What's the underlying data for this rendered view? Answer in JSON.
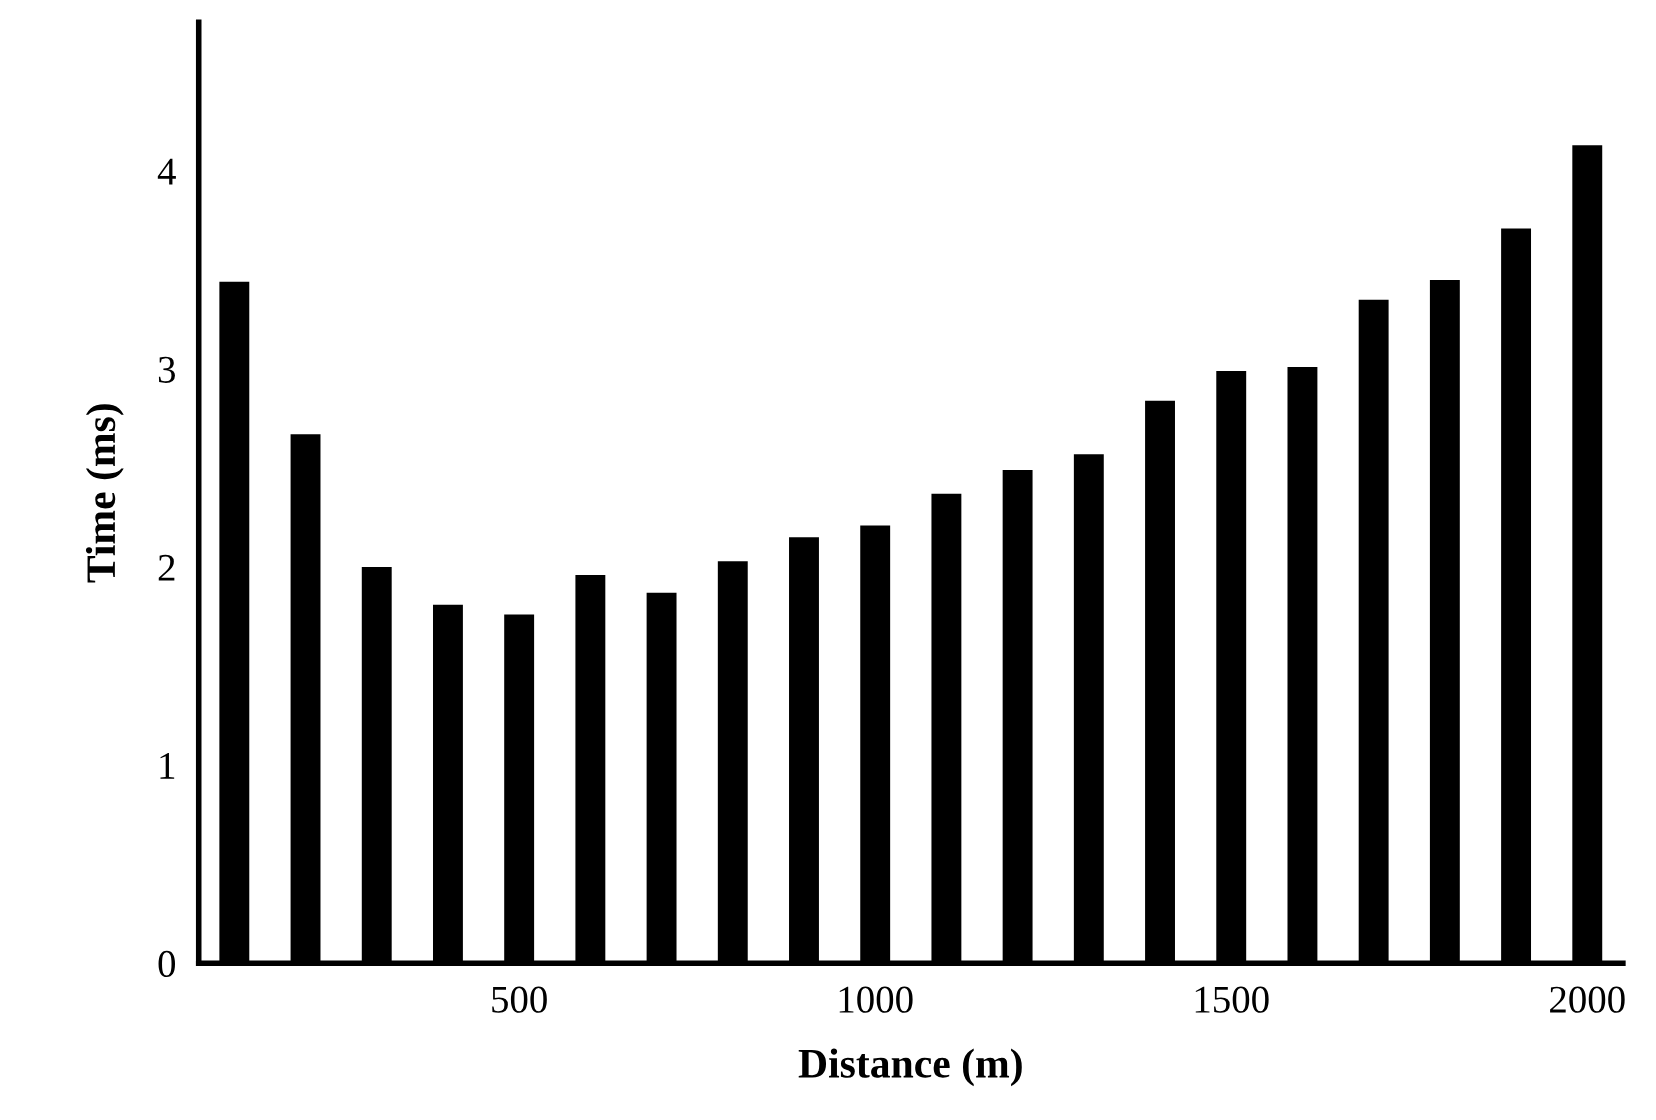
{
  "chart_data": {
    "type": "bar",
    "xlabel": "Distance (m)",
    "ylabel": "Time (ms)",
    "categories": [
      null,
      null,
      null,
      null,
      "500",
      null,
      null,
      null,
      null,
      "1000",
      null,
      null,
      null,
      null,
      "1500",
      null,
      null,
      null,
      null,
      "2000"
    ],
    "values": [
      3.44,
      2.67,
      2.0,
      1.81,
      1.76,
      1.96,
      1.87,
      2.03,
      2.15,
      2.21,
      2.37,
      2.49,
      2.57,
      2.84,
      2.99,
      3.01,
      3.35,
      3.45,
      3.71,
      4.13
    ],
    "color": "#000000",
    "ylim": [
      0,
      4.75
    ],
    "yticks": [
      0,
      1,
      2,
      3,
      4
    ],
    "grid": false,
    "legend": false
  }
}
